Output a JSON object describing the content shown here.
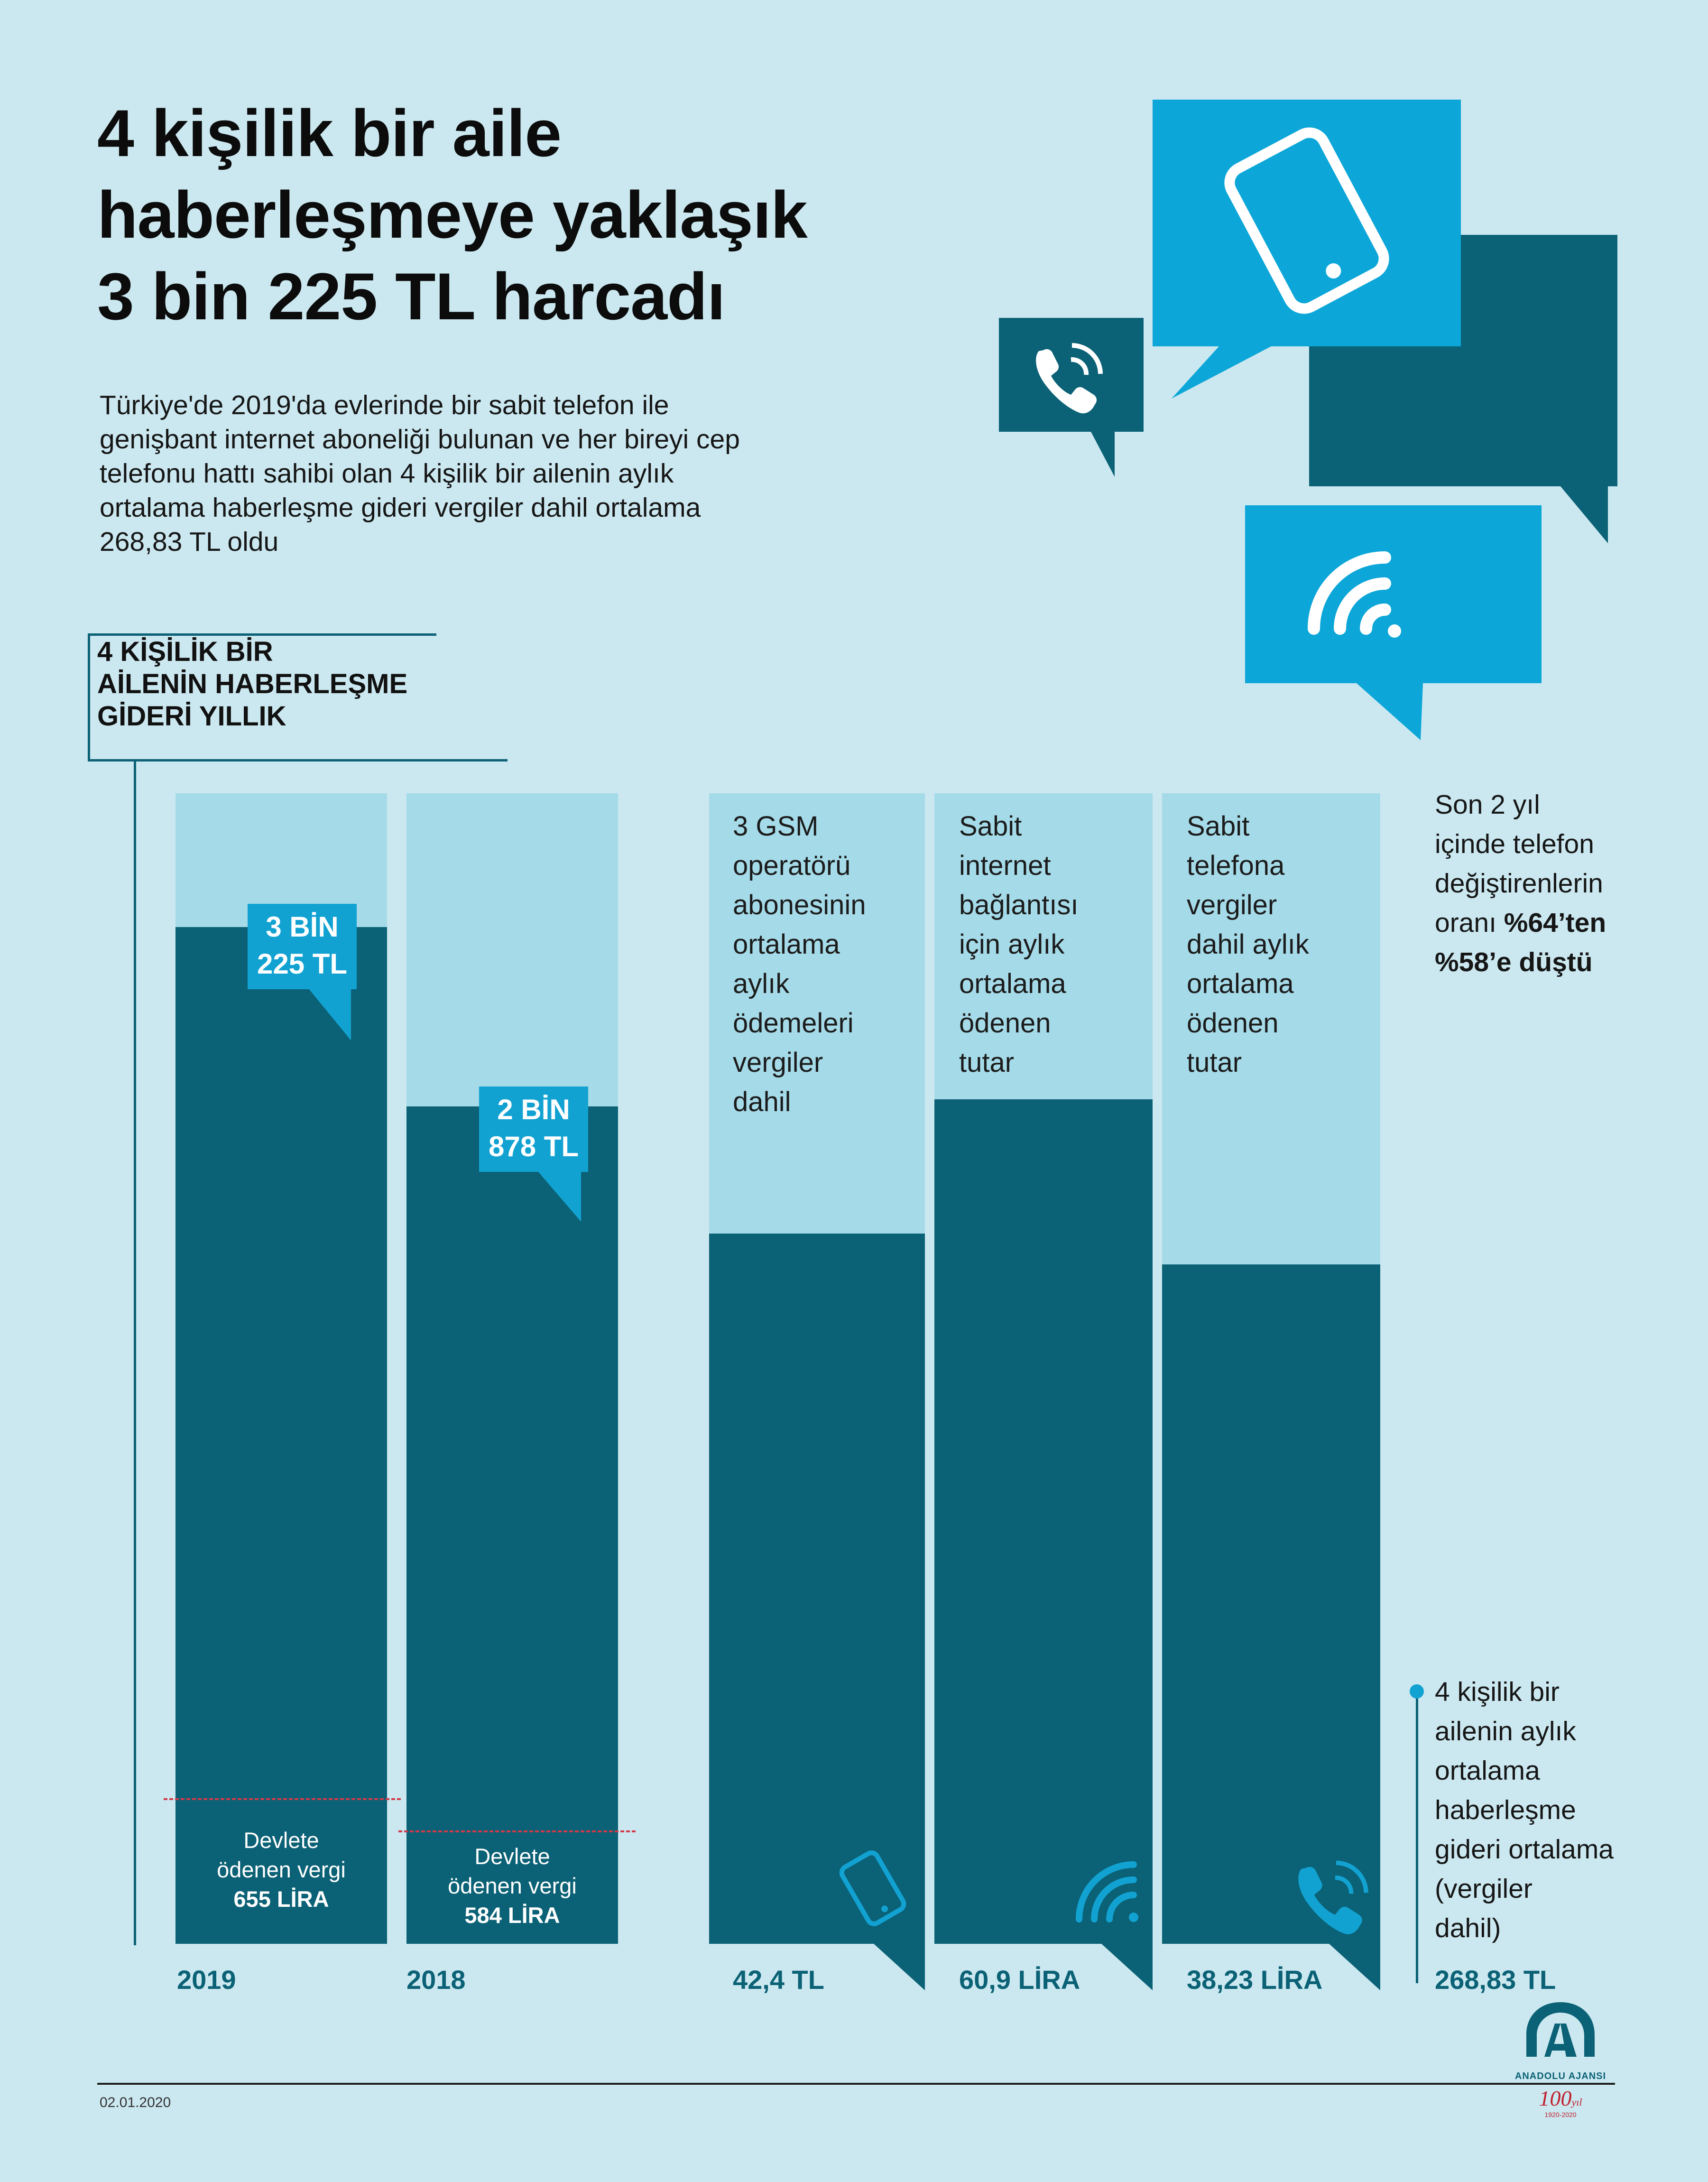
{
  "title": {
    "line1": "4 kişilik bir aile",
    "line2": "haberleşmeye yaklaşık",
    "line3": "3 bin 225 TL harcadı"
  },
  "subtitle": {
    "line1": "Türkiye'de 2019'da evlerinde bir sabit telefon ile",
    "line2": "genişbant internet aboneliği bulunan ve her bireyi cep",
    "line3": "telefonu hattı sahibi olan 4 kişilik bir ailenin aylık",
    "line4": "ortalama haberleşme gideri vergiler dahil ortalama",
    "line5": "268,83 TL oldu"
  },
  "section_label": {
    "line1": "4 KİŞİLİK BİR",
    "line2": "AİLENİN HABERLEŞME",
    "line3": "GİDERİ YILLIK"
  },
  "yearly": [
    {
      "year": "2019",
      "callout_l1": "3 BİN",
      "callout_l2": "225 TL",
      "tax_l1": "Devlete",
      "tax_l2": "ödenen vergi",
      "tax_l3": "655 LİRA"
    },
    {
      "year": "2018",
      "callout_l1": "2 BİN",
      "callout_l2": "878 TL",
      "tax_l1": "Devlete",
      "tax_l2": "ödenen vergi",
      "tax_l3": "584 LİRA"
    }
  ],
  "monthly": [
    {
      "lines": [
        "3 GSM",
        "operatörü",
        "abonesinin",
        "ortalama",
        "aylık",
        "ödemeleri",
        "vergiler",
        "dahil"
      ],
      "value": "42,4 TL",
      "icon": "smartphone-icon"
    },
    {
      "lines": [
        "Sabit",
        "internet",
        "bağlantısı",
        "için aylık",
        "ortalama",
        "ödenen",
        "tutar"
      ],
      "value": "60,9 LİRA",
      "icon": "wifi-icon"
    },
    {
      "lines": [
        "Sabit",
        "telefona",
        "vergiler",
        "dahil aylık",
        "ortalama",
        "ödenen",
        "tutar"
      ],
      "value": "38,23 LİRA",
      "icon": "phone-icon"
    }
  ],
  "phone_change": {
    "line1": "Son 2 yıl",
    "line2": "içinde telefon",
    "line3": "değiştirenlerin",
    "line4_pre": "oranı ",
    "line4_bold": "%64’ten",
    "line5_bold": "%58’e düştü"
  },
  "monthly_avg": {
    "lines": [
      "4 kişilik bir",
      "ailenin aylık",
      "ortalama",
      "haberleşme",
      "gideri ortalama",
      "(vergiler",
      "dahil)"
    ],
    "value": "268,83 TL"
  },
  "footer": {
    "date": "02.01.2020",
    "logo_text": "ANADOLU AJANSI",
    "anniv": "100",
    "anniv_suffix": "yıl",
    "anniv_years": "1920-2020"
  },
  "colors": {
    "background": "#cbe8f0",
    "dark_teal": "#0b6175",
    "light_bar": "#a5dae8",
    "accent_blue": "#12a2d2",
    "dash_red": "#d23a4a"
  }
}
